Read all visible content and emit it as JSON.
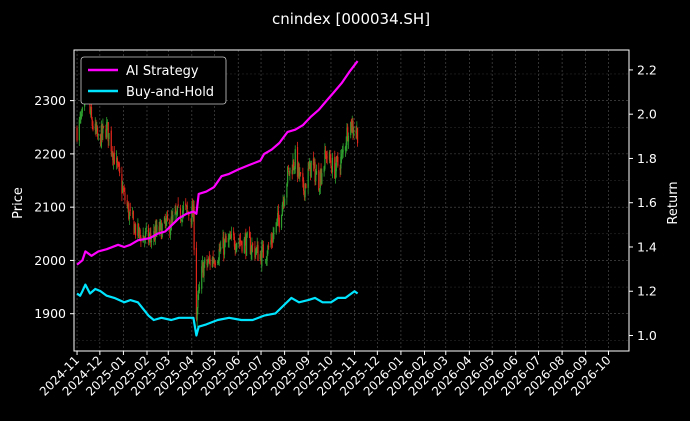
{
  "chart_data": {
    "type": "line",
    "title": "cnindex [000034.SH]",
    "ylabel_left": "Price",
    "ylabel_right": "Return",
    "x_range": [
      "2024-10-28",
      "2026-10-28"
    ],
    "x_ticks": [
      "2024-11",
      "2024-12",
      "2025-01",
      "2025-02",
      "2025-03",
      "2025-04",
      "2025-05",
      "2025-06",
      "2025-07",
      "2025-08",
      "2025-09",
      "2025-10",
      "2025-11",
      "2025-12",
      "2026-01",
      "2026-02",
      "2026-03",
      "2026-04",
      "2026-05",
      "2026-06",
      "2026-07",
      "2026-08",
      "2026-09",
      "2026-10"
    ],
    "ylim_left": [
      1830,
      2395
    ],
    "yticks_left": [
      1900,
      2000,
      2100,
      2200,
      2300
    ],
    "ylim_right": [
      0.93,
      2.29
    ],
    "yticks_right": [
      "1.0",
      "1.2",
      "1.4",
      "1.6",
      "1.8",
      "2.0",
      "2.2"
    ],
    "grid": true,
    "legend_position": "top-left",
    "colors": {
      "background": "#000000",
      "up_candle": "#2e9e2e",
      "down_candle": "#e0261b",
      "grid": "#555555",
      "axes": "#ffffff"
    },
    "series": [
      {
        "name": "AI Strategy",
        "axis": "right",
        "color": "#ff00ff",
        "points": [
          [
            "2024-11-01",
            1.32
          ],
          [
            "2024-11-08",
            1.34
          ],
          [
            "2024-11-12",
            1.38
          ],
          [
            "2024-11-20",
            1.36
          ],
          [
            "2024-11-29",
            1.38
          ],
          [
            "2024-12-10",
            1.39
          ],
          [
            "2024-12-25",
            1.41
          ],
          [
            "2025-01-02",
            1.4
          ],
          [
            "2025-01-10",
            1.41
          ],
          [
            "2025-01-20",
            1.43
          ],
          [
            "2025-02-05",
            1.44
          ],
          [
            "2025-02-15",
            1.46
          ],
          [
            "2025-02-25",
            1.47
          ],
          [
            "2025-03-06",
            1.5
          ],
          [
            "2025-03-15",
            1.53
          ],
          [
            "2025-03-25",
            1.55
          ],
          [
            "2025-04-03",
            1.56
          ],
          [
            "2025-04-07",
            1.55
          ],
          [
            "2025-04-10",
            1.64
          ],
          [
            "2025-04-20",
            1.65
          ],
          [
            "2025-04-30",
            1.67
          ],
          [
            "2025-05-10",
            1.72
          ],
          [
            "2025-05-20",
            1.73
          ],
          [
            "2025-06-01",
            1.75
          ],
          [
            "2025-06-15",
            1.77
          ],
          [
            "2025-06-30",
            1.79
          ],
          [
            "2025-07-05",
            1.82
          ],
          [
            "2025-07-15",
            1.84
          ],
          [
            "2025-07-25",
            1.87
          ],
          [
            "2025-08-05",
            1.92
          ],
          [
            "2025-08-15",
            1.93
          ],
          [
            "2025-08-25",
            1.95
          ],
          [
            "2025-09-05",
            1.99
          ],
          [
            "2025-09-15",
            2.02
          ],
          [
            "2025-09-25",
            2.06
          ],
          [
            "2025-10-05",
            2.1
          ],
          [
            "2025-10-15",
            2.14
          ],
          [
            "2025-10-25",
            2.19
          ],
          [
            "2025-11-05",
            2.24
          ]
        ]
      },
      {
        "name": "Buy-and-Hold",
        "axis": "right",
        "color": "#00e5ff",
        "points": [
          [
            "2024-11-01",
            1.19
          ],
          [
            "2024-11-05",
            1.18
          ],
          [
            "2024-11-08",
            1.2
          ],
          [
            "2024-11-12",
            1.23
          ],
          [
            "2024-11-18",
            1.19
          ],
          [
            "2024-11-25",
            1.21
          ],
          [
            "2024-12-02",
            1.2
          ],
          [
            "2024-12-10",
            1.18
          ],
          [
            "2024-12-20",
            1.17
          ],
          [
            "2025-01-02",
            1.15
          ],
          [
            "2025-01-10",
            1.16
          ],
          [
            "2025-01-20",
            1.15
          ],
          [
            "2025-02-03",
            1.09
          ],
          [
            "2025-02-10",
            1.07
          ],
          [
            "2025-02-20",
            1.08
          ],
          [
            "2025-03-05",
            1.07
          ],
          [
            "2025-03-15",
            1.08
          ],
          [
            "2025-03-25",
            1.08
          ],
          [
            "2025-04-03",
            1.08
          ],
          [
            "2025-04-07",
            1.0
          ],
          [
            "2025-04-10",
            1.04
          ],
          [
            "2025-04-20",
            1.05
          ],
          [
            "2025-05-05",
            1.07
          ],
          [
            "2025-05-20",
            1.08
          ],
          [
            "2025-06-05",
            1.07
          ],
          [
            "2025-06-20",
            1.07
          ],
          [
            "2025-07-05",
            1.09
          ],
          [
            "2025-07-20",
            1.1
          ],
          [
            "2025-08-01",
            1.14
          ],
          [
            "2025-08-10",
            1.17
          ],
          [
            "2025-08-20",
            1.15
          ],
          [
            "2025-09-01",
            1.16
          ],
          [
            "2025-09-10",
            1.17
          ],
          [
            "2025-09-20",
            1.15
          ],
          [
            "2025-10-01",
            1.15
          ],
          [
            "2025-10-10",
            1.17
          ],
          [
            "2025-10-20",
            1.17
          ],
          [
            "2025-11-01",
            1.2
          ],
          [
            "2025-11-05",
            1.19
          ]
        ]
      }
    ],
    "price_path": [
      [
        "2024-11-01",
        2245
      ],
      [
        "2024-11-08",
        2270
      ],
      [
        "2024-11-12",
        2320
      ],
      [
        "2024-11-20",
        2260
      ],
      [
        "2024-11-29",
        2225
      ],
      [
        "2024-12-10",
        2250
      ],
      [
        "2024-12-20",
        2195
      ],
      [
        "2025-01-02",
        2120
      ],
      [
        "2025-01-10",
        2080
      ],
      [
        "2025-01-20",
        2050
      ],
      [
        "2025-02-05",
        2040
      ],
      [
        "2025-02-20",
        2060
      ],
      [
        "2025-03-05",
        2070
      ],
      [
        "2025-03-20",
        2095
      ],
      [
        "2025-04-03",
        2085
      ],
      [
        "2025-04-07",
        1900
      ],
      [
        "2025-04-15",
        1985
      ],
      [
        "2025-04-30",
        2005
      ],
      [
        "2025-05-15",
        2030
      ],
      [
        "2025-05-30",
        2040
      ],
      [
        "2025-06-15",
        2030
      ],
      [
        "2025-06-30",
        2010
      ],
      [
        "2025-07-10",
        2020
      ],
      [
        "2025-07-25",
        2080
      ],
      [
        "2025-08-05",
        2160
      ],
      [
        "2025-08-15",
        2190
      ],
      [
        "2025-08-25",
        2130
      ],
      [
        "2025-09-05",
        2180
      ],
      [
        "2025-09-15",
        2150
      ],
      [
        "2025-09-25",
        2200
      ],
      [
        "2025-10-05",
        2170
      ],
      [
        "2025-10-15",
        2190
      ],
      [
        "2025-10-25",
        2260
      ],
      [
        "2025-11-05",
        2240
      ]
    ]
  }
}
